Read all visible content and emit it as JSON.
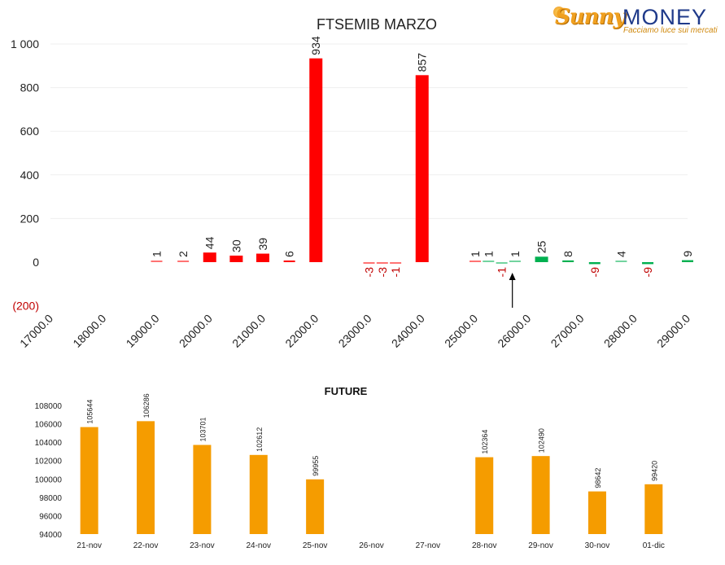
{
  "brand": {
    "sunny": "Sunny",
    "money": "MONEY",
    "tagline": "Facciamo luce sui mercati"
  },
  "chart_data": [
    {
      "type": "bar",
      "title": "FTSEMIB MARZO",
      "xlabel": "",
      "ylabel": "",
      "ylim": [
        -200,
        1000
      ],
      "y_ticks": [
        {
          "value": 1000,
          "label": "1 000"
        },
        {
          "value": 800,
          "label": "800"
        },
        {
          "value": 600,
          "label": "600"
        },
        {
          "value": 400,
          "label": "400"
        },
        {
          "value": 200,
          "label": "200"
        },
        {
          "value": 0,
          "label": "0"
        },
        {
          "value": -200,
          "label": "(200)"
        }
      ],
      "x_ticks": [
        "17000.0",
        "18000.0",
        "19000.0",
        "20000.0",
        "21000.0",
        "22000.0",
        "23000.0",
        "24000.0",
        "25000.0",
        "26000.0",
        "27000.0",
        "28000.0",
        "29000.0"
      ],
      "x_range": [
        17000,
        29000
      ],
      "grid": true,
      "colors": {
        "put": "#ff0000",
        "call": "#00b050",
        "negative_label": "#c00000"
      },
      "series": [
        {
          "name": "",
          "color": "#ff0000",
          "points": [
            {
              "x": 19000,
              "y": 1,
              "label": "1"
            },
            {
              "x": 19500,
              "y": 2,
              "label": "2"
            },
            {
              "x": 20000,
              "y": 44,
              "label": "44"
            },
            {
              "x": 20500,
              "y": 30,
              "label": "30"
            },
            {
              "x": 21000,
              "y": 39,
              "label": "39"
            },
            {
              "x": 21500,
              "y": 6,
              "label": "6"
            },
            {
              "x": 22000,
              "y": 934,
              "label": "934"
            },
            {
              "x": 23000,
              "y": -3,
              "label": "-3"
            },
            {
              "x": 23250,
              "y": -3,
              "label": "-3"
            },
            {
              "x": 23500,
              "y": -1,
              "label": "-1"
            },
            {
              "x": 24000,
              "y": 857,
              "label": "857"
            },
            {
              "x": 25000,
              "y": 1,
              "label": "1"
            }
          ]
        },
        {
          "name": "",
          "color": "#00b050",
          "points": [
            {
              "x": 25250,
              "y": 1,
              "label": "1"
            },
            {
              "x": 25500,
              "y": -1,
              "label": "-1"
            },
            {
              "x": 25750,
              "y": 1,
              "label": "1"
            },
            {
              "x": 26250,
              "y": 25,
              "label": "25"
            },
            {
              "x": 26750,
              "y": 8,
              "label": "8"
            },
            {
              "x": 27250,
              "y": -9,
              "label": "-9"
            },
            {
              "x": 27750,
              "y": 4,
              "label": "4"
            },
            {
              "x": 28250,
              "y": -9,
              "label": "-9"
            },
            {
              "x": 29000,
              "y": 9,
              "label": "9"
            }
          ]
        }
      ],
      "marker": {
        "type": "arrow-up",
        "x": 25700
      }
    },
    {
      "type": "bar",
      "title": "FUTURE",
      "xlabel": "",
      "ylabel": "",
      "ylim": [
        94000,
        108000
      ],
      "y_ticks": [
        "108000",
        "106000",
        "104000",
        "102000",
        "100000",
        "98000",
        "96000",
        "94000"
      ],
      "y_tick_values": [
        108000,
        106000,
        104000,
        102000,
        100000,
        98000,
        96000,
        94000
      ],
      "grid": false,
      "color": "#f59c00",
      "categories": [
        "21-nov",
        "22-nov",
        "23-nov",
        "24-nov",
        "25-nov",
        "26-nov",
        "27-nov",
        "28-nov",
        "29-nov",
        "30-nov",
        "01-dic"
      ],
      "values": [
        105644,
        106286,
        103701,
        102612,
        99955,
        null,
        null,
        102364,
        102490,
        98642,
        99420
      ],
      "value_labels": [
        "105644",
        "106286",
        "103701",
        "102612",
        "99955",
        "",
        "",
        "102364",
        "102490",
        "98642",
        "99420"
      ]
    }
  ]
}
